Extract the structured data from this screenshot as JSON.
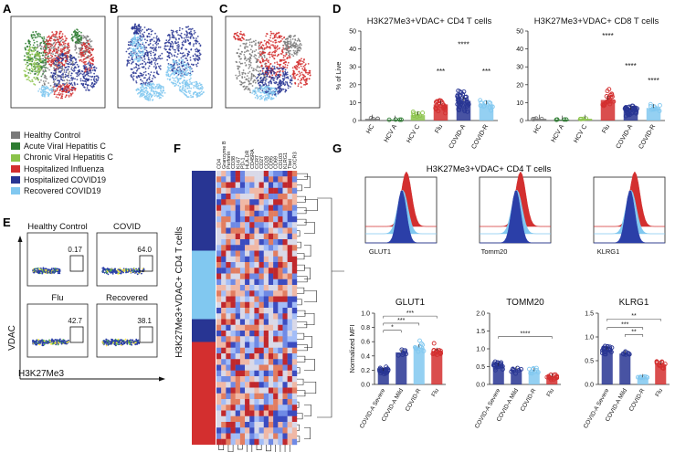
{
  "panels": {
    "A": "A",
    "B": "B",
    "C": "C",
    "D": "D",
    "E": "E",
    "F": "F",
    "G": "G"
  },
  "legend": [
    {
      "label": "Healthy Control",
      "color": "#7a7a7a"
    },
    {
      "label": "Acute Viral Hepatitis C",
      "color": "#2e7d32"
    },
    {
      "label": "Chronic Viral Hepatitis C",
      "color": "#8bc34a"
    },
    {
      "label": "Hospitalized Influenza",
      "color": "#d32f2f"
    },
    {
      "label": "Hospitalized COVID19",
      "color": "#283593"
    },
    {
      "label": "Recovered COVID19",
      "color": "#81c8f0"
    }
  ],
  "colors": {
    "hc": "#7a7a7a",
    "hcva": "#2e7d32",
    "hcvc": "#8bc34a",
    "flu": "#d32f2f",
    "covida": "#283593",
    "covidr": "#81c8f0"
  },
  "chart_data": [
    {
      "type": "bar",
      "panel": "D",
      "title": "H3K27Me3+VDAC+ CD4 T cells",
      "ylabel": "% of Live",
      "ylim": [
        0,
        50
      ],
      "yticks": [
        0,
        10,
        20,
        30,
        40,
        50
      ],
      "categories": [
        "HC",
        "HCV A",
        "HCV C",
        "Flu",
        "COVID-A",
        "COVID-R"
      ],
      "values": [
        1,
        0.5,
        3,
        9,
        11,
        9
      ],
      "significance": [
        "",
        "",
        "",
        "***",
        "****",
        "***"
      ]
    },
    {
      "type": "bar",
      "panel": "D",
      "title": "H3K27Me3+VDAC+ CD8 T cells",
      "ylabel": "",
      "ylim": [
        0,
        50
      ],
      "yticks": [
        0,
        10,
        20,
        30,
        40,
        50
      ],
      "categories": [
        "HC",
        "HCV A",
        "HCV C",
        "Flu",
        "COVID-A",
        "COVID-R"
      ],
      "values": [
        1,
        0.5,
        1,
        11.5,
        6,
        7
      ],
      "significance": [
        "",
        "",
        "",
        "****",
        "****",
        "****"
      ]
    },
    {
      "type": "bar",
      "panel": "G",
      "title": "GLUT1",
      "ylabel": "Normalized MFI",
      "ylim": [
        0,
        1.0
      ],
      "yticks": [
        0,
        0.2,
        0.4,
        0.6,
        0.8,
        1.0
      ],
      "categories": [
        "COVID-A Severe",
        "COVID-A Mild",
        "COVID-R",
        "Flu"
      ],
      "values": [
        0.19,
        0.45,
        0.52,
        0.47
      ],
      "brackets": [
        {
          "from": 0,
          "to": 1,
          "label": "*"
        },
        {
          "from": 0,
          "to": 2,
          "label": "***"
        },
        {
          "from": 0,
          "to": 3,
          "label": "***"
        }
      ]
    },
    {
      "type": "bar",
      "panel": "G",
      "title": "TOMM20",
      "ylabel": "",
      "ylim": [
        0,
        2.0
      ],
      "yticks": [
        0,
        0.5,
        1.0,
        1.5,
        2.0
      ],
      "categories": [
        "COVID-A Severe",
        "COVID-A Mild",
        "COVID-R",
        "Flu"
      ],
      "values": [
        0.52,
        0.42,
        0.37,
        0.22
      ],
      "brackets": [
        {
          "from": 0,
          "to": 3,
          "label": "****"
        }
      ]
    },
    {
      "type": "bar",
      "panel": "G",
      "title": "KLRG1",
      "ylabel": "",
      "ylim": [
        0,
        1.5
      ],
      "yticks": [
        0,
        0.5,
        1.0,
        1.5
      ],
      "categories": [
        "COVID-A Severe",
        "COVID-A Mild",
        "COVID-R",
        "Flu"
      ],
      "values": [
        0.73,
        0.65,
        0.15,
        0.42
      ],
      "brackets": [
        {
          "from": 1,
          "to": 2,
          "label": "**"
        },
        {
          "from": 0,
          "to": 2,
          "label": "***"
        },
        {
          "from": 0,
          "to": 3,
          "label": "**"
        }
      ]
    }
  ],
  "panel_e": {
    "ylabel": "VDAC",
    "xlabel": "H3K27Me3",
    "plots": [
      {
        "label": "Healthy Control",
        "gate": "0.17"
      },
      {
        "label": "COVID",
        "gate": "64.0"
      },
      {
        "label": "Flu",
        "gate": "42.7"
      },
      {
        "label": "Recovered",
        "gate": "38.1"
      }
    ]
  },
  "panel_f": {
    "ylabel": "H3K27Me3+VDAC+ CD4 T cells",
    "columns": [
      "CD4",
      "Granzyme B",
      "Perforin",
      "CD38",
      "KI-67",
      "PD-1",
      "HLA-DR",
      "CD45RA",
      "CCR7",
      "CD27",
      "CD28",
      "CD95",
      "CD69",
      "CD103",
      "KLRG1",
      "Tbet",
      "CXCR3"
    ]
  },
  "panel_g": {
    "title": "H3K27Me3+VDAC+ CD4 T cells",
    "hist_labels": [
      "GLUT1",
      "Tomm20",
      "KLRG1"
    ]
  }
}
